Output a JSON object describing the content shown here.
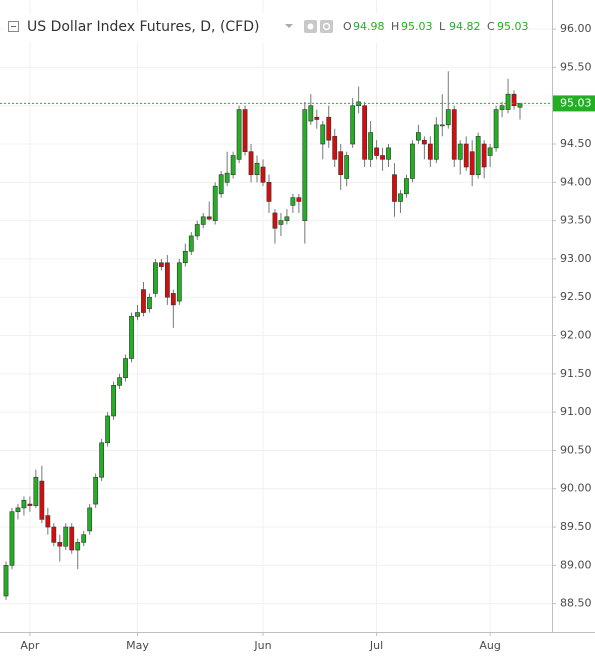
{
  "chart_data": {
    "type": "candlestick",
    "title": "US Dollar Index Futures, D, (CFD)",
    "ohlc_labels": [
      "O",
      "H",
      "L",
      "C"
    ],
    "ohlc_values": [
      94.98,
      95.03,
      94.82,
      95.03
    ],
    "last_price": 95.03,
    "up_color": "#22b022",
    "down_color": "#d40d0d",
    "last_price_color": "#22b022",
    "ylim": [
      88.13,
      96.38
    ],
    "yticks": [
      {
        "value": 88.5,
        "label": "88.50"
      },
      {
        "value": 89,
        "label": "89.00"
      },
      {
        "value": 89.5,
        "label": "89.50"
      },
      {
        "value": 90,
        "label": "90.00"
      },
      {
        "value": 90.5,
        "label": "90.50"
      },
      {
        "value": 91,
        "label": "91.00"
      },
      {
        "value": 91.5,
        "label": "91.50"
      },
      {
        "value": 92,
        "label": "92.00"
      },
      {
        "value": 92.5,
        "label": "92.50"
      },
      {
        "value": 93,
        "label": "93.00"
      },
      {
        "value": 93.5,
        "label": "93.50"
      },
      {
        "value": 94,
        "label": "94.00"
      },
      {
        "value": 94.5,
        "label": "94.50"
      },
      {
        "value": 95,
        "label": "95.00"
      },
      {
        "value": 95.5,
        "label": "95.50"
      },
      {
        "value": 96,
        "label": "96.00"
      }
    ],
    "grid": true,
    "categories": [
      null,
      null,
      null,
      null,
      "Apr",
      null,
      null,
      null,
      null,
      null,
      null,
      null,
      null,
      null,
      null,
      null,
      null,
      null,
      null,
      null,
      null,
      null,
      "May",
      null,
      null,
      null,
      null,
      null,
      null,
      null,
      null,
      null,
      null,
      null,
      null,
      null,
      null,
      null,
      null,
      null,
      null,
      null,
      null,
      "Jun",
      null,
      null,
      null,
      null,
      null,
      null,
      null,
      null,
      null,
      null,
      null,
      null,
      null,
      null,
      null,
      null,
      null,
      null,
      "Jul",
      null,
      null,
      null,
      null,
      null,
      null,
      null,
      null,
      null,
      null,
      null,
      null,
      null,
      null,
      null,
      null,
      null,
      null,
      "Aug",
      null,
      null,
      null,
      null,
      null
    ],
    "open": [
      88.6,
      89.0,
      89.7,
      89.75,
      89.8,
      89.78,
      90.1,
      89.65,
      89.5,
      89.3,
      89.25,
      89.5,
      89.2,
      89.3,
      89.45,
      89.8,
      90.15,
      90.6,
      90.95,
      91.35,
      91.45,
      91.7,
      92.25,
      92.6,
      92.35,
      92.55,
      92.95,
      92.95,
      92.55,
      92.45,
      92.95,
      93.1,
      93.3,
      93.45,
      93.55,
      93.5,
      93.85,
      94.0,
      94.1,
      94.3,
      94.95,
      94.4,
      94.1,
      94.2,
      94.0,
      93.6,
      93.45,
      93.5,
      93.7,
      93.8,
      93.5,
      94.8,
      94.85,
      94.5,
      94.85,
      94.6,
      94.4,
      94.05,
      94.5,
      95.0,
      95.0,
      94.3,
      94.45,
      94.35,
      94.3,
      94.1,
      93.75,
      93.85,
      94.05,
      94.55,
      94.55,
      94.5,
      94.3,
      94.75,
      94.75,
      94.95,
      94.3,
      94.5,
      94.4,
      94.1,
      94.5,
      94.35,
      94.45,
      94.95,
      94.95,
      95.15,
      94.98
    ],
    "high": [
      89.05,
      89.75,
      89.8,
      89.9,
      89.9,
      90.25,
      90.3,
      89.75,
      89.55,
      89.4,
      89.55,
      89.55,
      89.35,
      89.45,
      89.8,
      90.2,
      90.65,
      91.0,
      91.4,
      91.5,
      91.75,
      92.3,
      92.4,
      92.7,
      92.55,
      93.0,
      93.0,
      93.05,
      92.6,
      93.0,
      93.2,
      93.35,
      93.5,
      93.6,
      93.75,
      94.0,
      94.15,
      94.4,
      94.4,
      95.0,
      95.0,
      94.5,
      94.35,
      94.3,
      94.1,
      93.65,
      93.6,
      93.65,
      93.85,
      93.85,
      95.05,
      95.15,
      94.95,
      94.8,
      95.0,
      94.7,
      94.5,
      94.4,
      95.1,
      95.25,
      95.05,
      94.8,
      94.55,
      94.45,
      94.5,
      94.25,
      93.9,
      94.1,
      94.55,
      94.75,
      94.6,
      94.6,
      94.85,
      95.15,
      95.45,
      95.0,
      94.55,
      94.6,
      94.55,
      94.65,
      94.55,
      94.5,
      95.0,
      95.05,
      95.35,
      95.2,
      95.03
    ],
    "low": [
      88.55,
      88.95,
      89.6,
      89.65,
      89.7,
      89.75,
      89.55,
      89.4,
      89.25,
      89.05,
      89.2,
      89.15,
      88.95,
      89.25,
      89.4,
      89.75,
      90.1,
      90.55,
      90.9,
      91.3,
      91.4,
      91.65,
      92.2,
      92.25,
      92.3,
      92.5,
      92.85,
      92.4,
      92.1,
      92.4,
      92.9,
      93.05,
      93.25,
      93.4,
      93.5,
      93.45,
      93.8,
      93.95,
      94.05,
      94.25,
      94.35,
      94.0,
      94.0,
      93.95,
      93.6,
      93.2,
      93.3,
      93.45,
      93.6,
      93.6,
      93.2,
      94.75,
      94.7,
      94.3,
      94.45,
      94.2,
      93.9,
      93.95,
      94.45,
      94.9,
      94.2,
      94.2,
      94.3,
      94.15,
      94.2,
      93.55,
      93.6,
      93.8,
      94.0,
      94.5,
      94.3,
      94.2,
      94.25,
      94.6,
      94.7,
      94.2,
      94.1,
      94.15,
      93.95,
      94.05,
      94.05,
      94.2,
      94.4,
      94.85,
      94.9,
      94.95,
      94.82
    ],
    "close": [
      89.0,
      89.7,
      89.75,
      89.85,
      89.78,
      90.15,
      89.6,
      89.5,
      89.3,
      89.25,
      89.5,
      89.2,
      89.3,
      89.4,
      89.75,
      90.15,
      90.6,
      90.95,
      91.35,
      91.45,
      91.7,
      92.25,
      92.3,
      92.3,
      92.5,
      92.95,
      92.9,
      92.5,
      92.4,
      92.95,
      93.1,
      93.3,
      93.45,
      93.55,
      93.52,
      93.95,
      94.1,
      94.12,
      94.35,
      94.95,
      94.4,
      94.1,
      94.25,
      94.0,
      93.75,
      93.4,
      93.5,
      93.55,
      93.8,
      93.75,
      94.95,
      95.0,
      94.82,
      94.75,
      94.55,
      94.3,
      94.1,
      94.35,
      95.0,
      95.05,
      94.3,
      94.65,
      94.35,
      94.3,
      94.45,
      93.75,
      93.85,
      94.05,
      94.5,
      94.65,
      94.5,
      94.3,
      94.75,
      94.75,
      94.95,
      94.3,
      94.5,
      94.2,
      94.1,
      94.6,
      94.2,
      94.45,
      94.95,
      95.0,
      95.15,
      95.0,
      95.03
    ]
  }
}
